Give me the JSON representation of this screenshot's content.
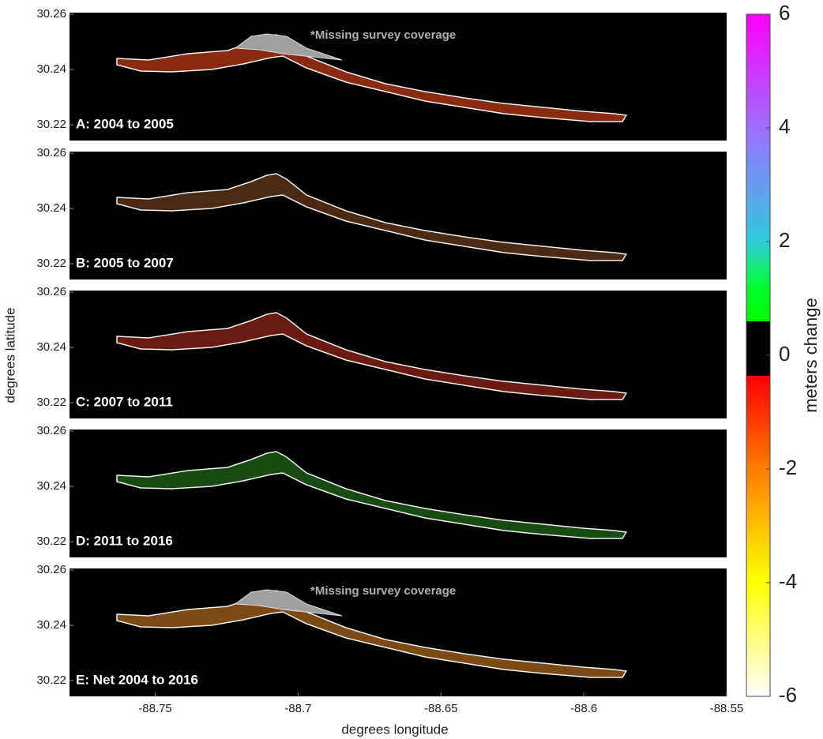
{
  "chart_data": {
    "type": "map-panels",
    "xlabel": "degrees longitude",
    "ylabel": "degrees latitude",
    "xlim": [
      -88.78,
      -88.55
    ],
    "xticks": [
      -88.75,
      -88.7,
      -88.65,
      -88.6,
      -88.55
    ],
    "ylim": [
      30.2143,
      30.2606
    ],
    "yticks": [
      30.22,
      30.24,
      30.26
    ],
    "panels": [
      {
        "label": "A: 2004 to 2005",
        "annotation": "*Missing survey coverage",
        "color": "#8a2a10"
      },
      {
        "label": "B: 2005 to 2007",
        "color": "#4a2a14"
      },
      {
        "label": "C: 2007 to 2011",
        "color": "#6a1a10"
      },
      {
        "label": "D: 2011 to 2016",
        "color": "#1a4a14"
      },
      {
        "label": "E: Net 2004 to 2016",
        "annotation": "*Missing survey coverage",
        "color": "#7a4a14"
      }
    ],
    "colorbar": {
      "label": "meters change",
      "lim": [
        -6,
        6
      ],
      "ticks": [
        6,
        4,
        2,
        0,
        -2,
        -4,
        -6
      ]
    }
  }
}
